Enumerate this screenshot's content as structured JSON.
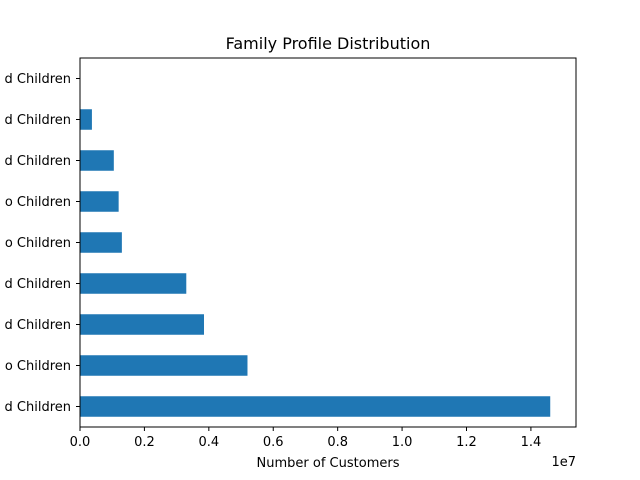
{
  "chart_data": {
    "type": "bar",
    "orientation": "horizontal",
    "title": "Family Profile Distribution",
    "xlabel": "Number of Customers",
    "ylabel": "",
    "x_offset_label": "1e7",
    "bar_color": "#1f77b4",
    "xlim": [
      0,
      15400000
    ],
    "xticks": [
      0,
      2000000,
      4000000,
      6000000,
      8000000,
      10000000,
      12000000,
      14000000
    ],
    "xtick_labels": [
      "0.0",
      "0.2",
      "0.4",
      "0.6",
      "0.8",
      "1.0",
      "1.2",
      "1.4"
    ],
    "grid": false,
    "categories": [
      "d Children",
      "o Children",
      "d Children",
      "d Children",
      "o Children",
      "o Children",
      "d Children",
      "d Children",
      "d Children"
    ],
    "values": [
      14600000,
      5200000,
      3850000,
      3300000,
      1300000,
      1200000,
      1050000,
      370000,
      0
    ]
  }
}
